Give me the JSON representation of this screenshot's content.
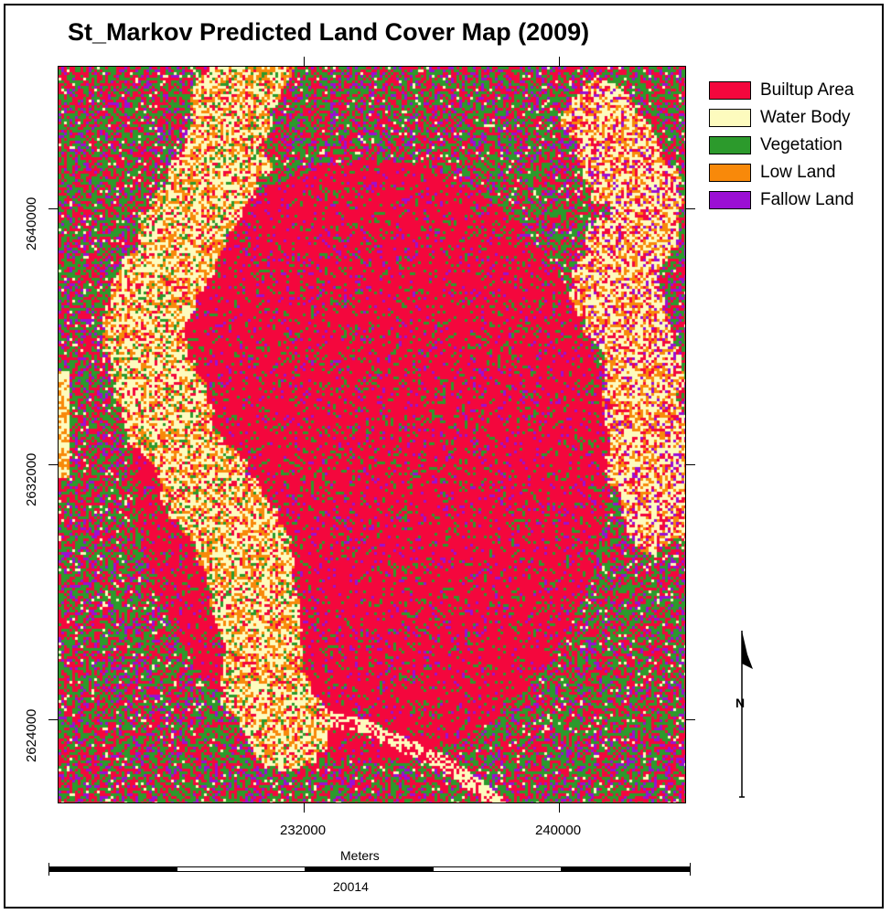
{
  "title": "St_Markov Predicted Land Cover Map (2009)",
  "legend": [
    {
      "label": "Builtup Area",
      "color": "#f4073d"
    },
    {
      "label": "Water Body",
      "color": "#fdfbbe"
    },
    {
      "label": "Vegetation",
      "color": "#2c9a2c"
    },
    {
      "label": "Low Land",
      "color": "#f8890a"
    },
    {
      "label": "Fallow Land",
      "color": "#9b0fd4"
    }
  ],
  "axes": {
    "x_ticks": [
      "232000",
      "240000"
    ],
    "y_ticks": [
      "2640000",
      "2632000",
      "2624000"
    ]
  },
  "scale": {
    "units": "Meters",
    "distance": "20014"
  },
  "north_arrow": {
    "letter": "N",
    "icon": "north-arrow-icon"
  }
}
